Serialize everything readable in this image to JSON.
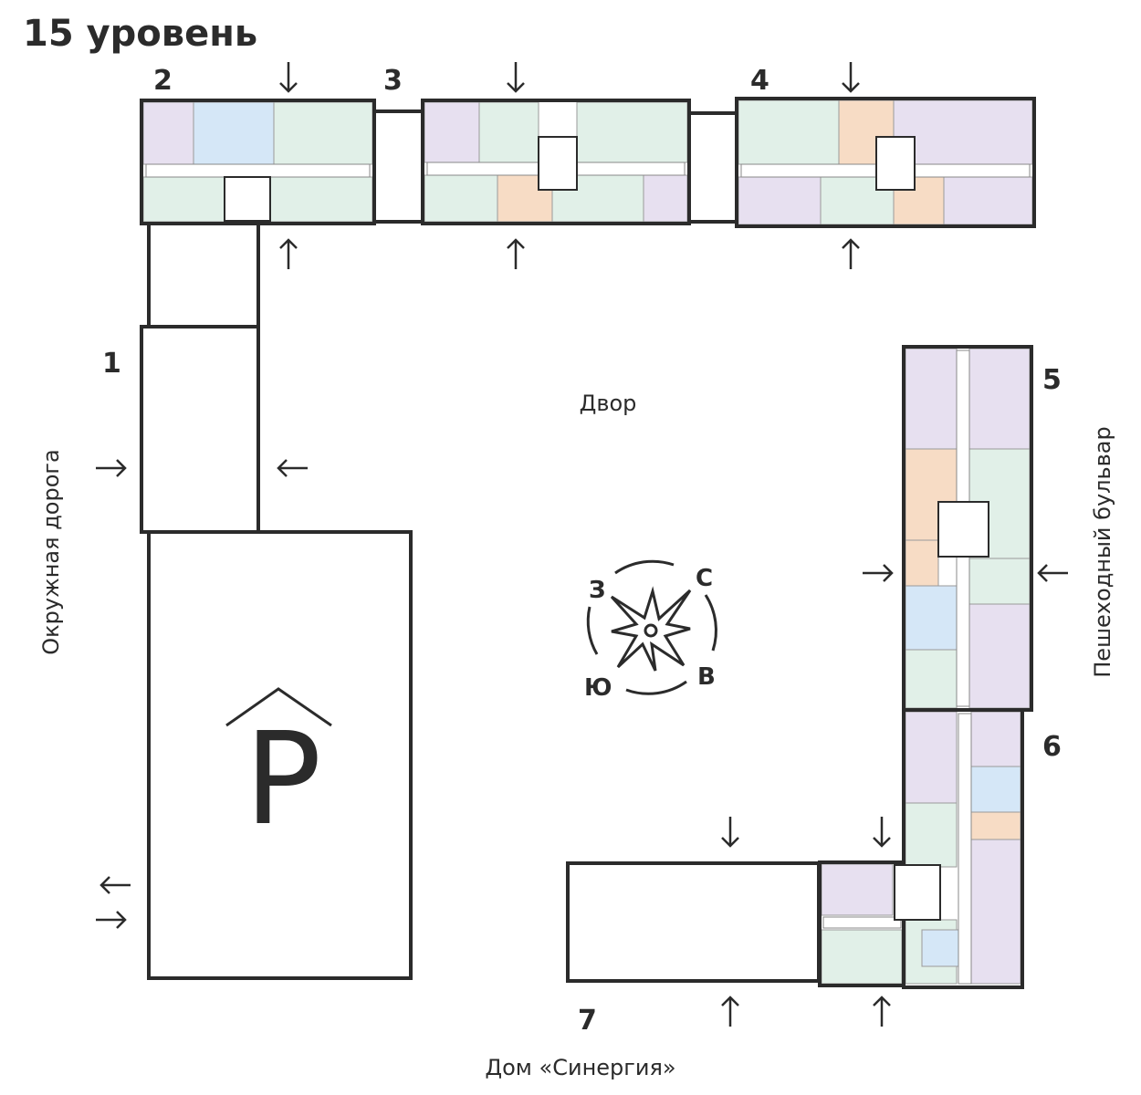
{
  "title": "15 уровень",
  "sections": {
    "s1": "1",
    "s2": "2",
    "s3": "3",
    "s4": "4",
    "s5": "5",
    "s6": "6",
    "s7": "7"
  },
  "labels": {
    "yard": "Двор",
    "ring_road": "Окружная дорога",
    "boulevard": "Пешеходный бульвар",
    "house": "Дом «Синергия»",
    "parking": "P"
  },
  "compass": {
    "north": "С",
    "east": "В",
    "south": "Ю",
    "west": "З"
  },
  "colors": {
    "outline": "#2b2b2b",
    "apartment_purple": "#e7e0f0",
    "apartment_green": "#e1f0e8",
    "apartment_blue": "#d5e7f7",
    "apartment_orange": "#f7dcc5",
    "corridor": "#ffffff"
  },
  "icons": [
    "arrow-down-icon",
    "arrow-up-icon",
    "arrow-left-icon",
    "arrow-right-icon",
    "compass-rose-icon",
    "parking-icon"
  ]
}
